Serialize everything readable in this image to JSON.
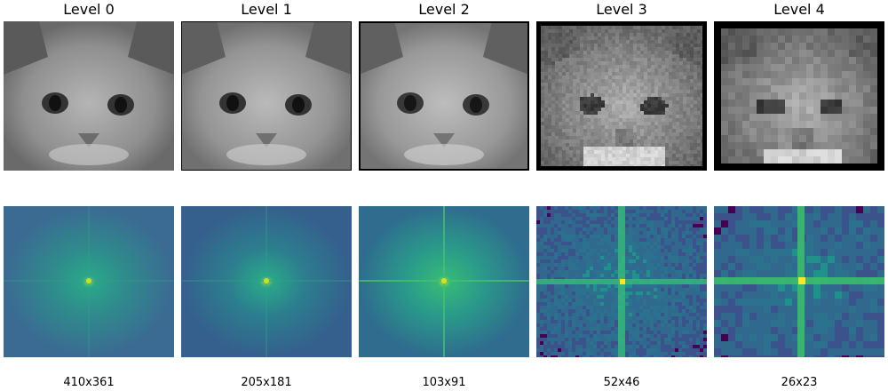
{
  "levels": [
    {
      "title": "Level 0",
      "size": "410x361",
      "pixel_block": 1,
      "border": 0
    },
    {
      "title": "Level 1",
      "size": "205x181",
      "pixel_block": 1,
      "border": 1
    },
    {
      "title": "Level 2",
      "size": "103x91",
      "pixel_block": 2,
      "border": 2
    },
    {
      "title": "Level 3",
      "size": "52x46",
      "pixel_block": 4,
      "border": 5
    },
    {
      "title": "Level 4",
      "size": "26x23",
      "pixel_block": 8,
      "border": 8
    }
  ],
  "colors": {
    "fft_background": "#3b6a93",
    "fft_mid": "#2aa58a",
    "fft_peak": "#f4e61f",
    "image_gray": "#9a9a9a"
  }
}
